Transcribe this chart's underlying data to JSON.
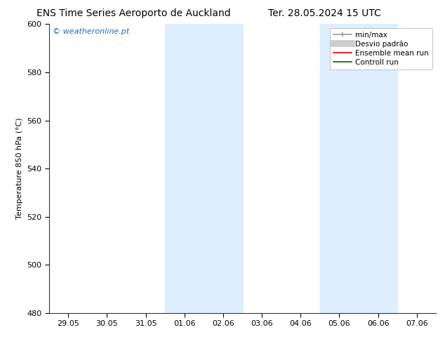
{
  "title_left": "ENS Time Series Aeroporto de Auckland",
  "title_right": "Ter. 28.05.2024 15 UTC",
  "ylabel": "Temperature 850 hPa (°C)",
  "ylim": [
    480,
    600
  ],
  "yticks": [
    480,
    500,
    520,
    540,
    560,
    580,
    600
  ],
  "xtick_labels": [
    "29.05",
    "30.05",
    "31.05",
    "01.06",
    "02.06",
    "03.06",
    "04.06",
    "05.06",
    "06.06",
    "07.06"
  ],
  "xlim": [
    0,
    9
  ],
  "shaded_bands": [
    {
      "xmin": 3.0,
      "xmax": 5.0,
      "color": "#ddeeff"
    },
    {
      "xmin": 7.0,
      "xmax": 9.0,
      "color": "#ddeeff"
    }
  ],
  "watermark_text": "© weatheronline.pt",
  "watermark_color": "#1a6db5",
  "bg_color": "#ffffff",
  "plot_bg_color": "#ffffff",
  "tick_fontsize": 8,
  "title_fontsize": 10,
  "ylabel_fontsize": 8,
  "legend_fontsize": 7.5
}
